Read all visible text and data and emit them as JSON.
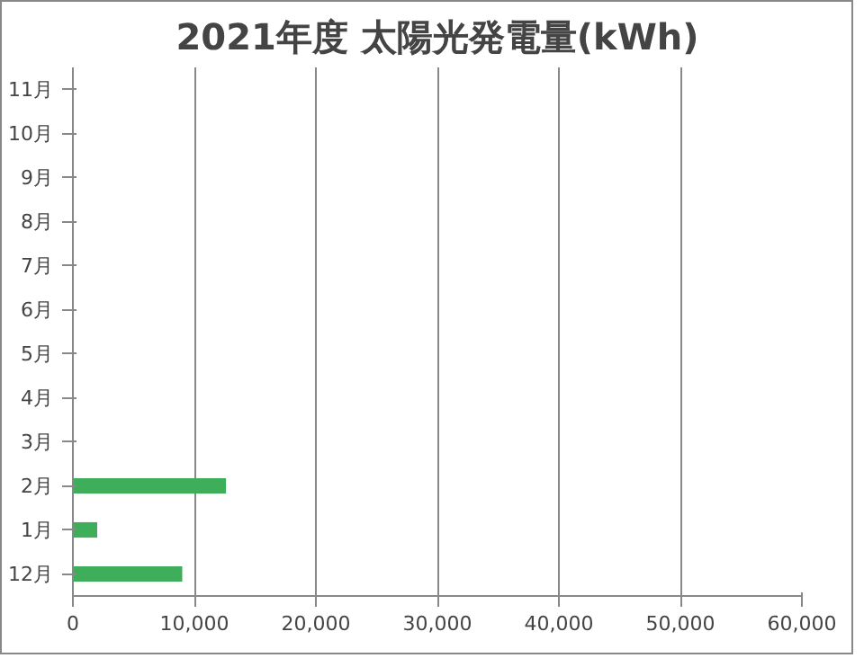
{
  "chart_data": {
    "type": "bar",
    "orientation": "horizontal",
    "title": "2021年度 太陽光発電量(kWh)",
    "categories": [
      "11月",
      "10月",
      "9月",
      "8月",
      "7月",
      "6月",
      "5月",
      "4月",
      "3月",
      "2月",
      "1月",
      "12月"
    ],
    "values": [
      null,
      null,
      null,
      null,
      null,
      null,
      null,
      null,
      null,
      12600,
      2000,
      9000
    ],
    "color": "#3fae5a",
    "xlim": [
      0,
      60000
    ],
    "xticks": [
      {
        "value": 0,
        "label": "0"
      },
      {
        "value": 10000,
        "label": "10,000"
      },
      {
        "value": 20000,
        "label": "20,000"
      },
      {
        "value": 30000,
        "label": "30,000"
      },
      {
        "value": 40000,
        "label": "40,000"
      },
      {
        "value": 50000,
        "label": "50,000"
      },
      {
        "value": 60000,
        "label": "60,000"
      }
    ],
    "grid": "x"
  }
}
